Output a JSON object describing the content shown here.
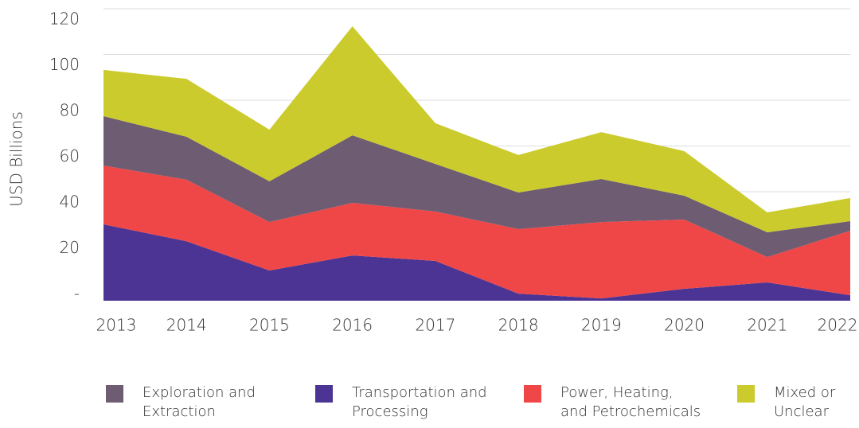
{
  "chart_data": {
    "type": "stacked_area",
    "ylabel": "USD Billions",
    "categories": [
      "2013",
      "2014",
      "2015",
      "2016",
      "2017",
      "2018",
      "2019",
      "2020",
      "2021",
      "2022"
    ],
    "series": [
      {
        "name": "Exploration and\nExtraction",
        "color": "#6e5c72",
        "values": [
          21.6,
          18.8,
          17.8,
          29.5,
          20.8,
          16,
          18.8,
          10.4,
          10.8,
          4.2
        ]
      },
      {
        "name": "Transportation and\nProcessing",
        "color": "#4b3494",
        "values": [
          33.4,
          26,
          13.2,
          19.8,
          17.4,
          3.1,
          1,
          5.2,
          8,
          2.4
        ]
      },
      {
        "name": "Power, Heating,\nand Petrochemicals",
        "color": "#ef4747",
        "values": [
          25.7,
          26.9,
          21.2,
          23,
          21.6,
          28.2,
          33.4,
          30.3,
          11.1,
          28.2
        ]
      },
      {
        "name": "Mixed or\nUnclear",
        "color": "#cbcb2e",
        "values": [
          20.2,
          25.3,
          22.6,
          47.7,
          17.8,
          16.4,
          20.5,
          19.5,
          8.7,
          10.1
        ]
      }
    ],
    "ylim": [
      0,
      120
    ],
    "yticks": [
      {
        "value": 0,
        "label": "-"
      },
      20,
      40,
      60,
      80,
      100,
      120
    ],
    "grid": true
  }
}
